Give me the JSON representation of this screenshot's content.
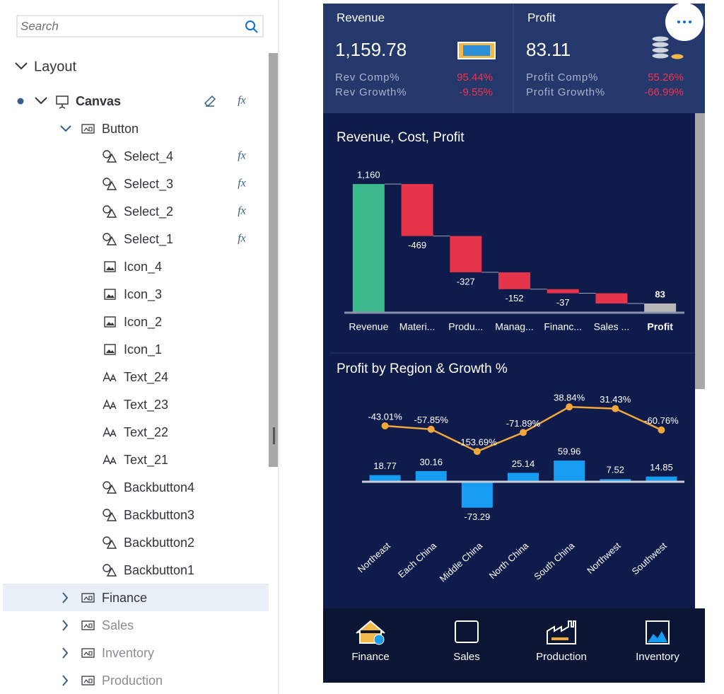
{
  "outline": {
    "search_placeholder": "Search",
    "root": "Layout",
    "canvas": "Canvas",
    "fx_label": "fx",
    "groups": [
      {
        "label": "Button",
        "expanded": true,
        "children": [
          {
            "label": "Select_4",
            "kind": "shape",
            "fx": true
          },
          {
            "label": "Select_3",
            "kind": "shape",
            "fx": true
          },
          {
            "label": "Select_2",
            "kind": "shape",
            "fx": true
          },
          {
            "label": "Select_1",
            "kind": "shape",
            "fx": true
          },
          {
            "label": "Icon_4",
            "kind": "image",
            "fx": false
          },
          {
            "label": "Icon_3",
            "kind": "image",
            "fx": false
          },
          {
            "label": "Icon_2",
            "kind": "image",
            "fx": false
          },
          {
            "label": "Icon_1",
            "kind": "image",
            "fx": false
          },
          {
            "label": "Text_24",
            "kind": "text",
            "fx": false
          },
          {
            "label": "Text_23",
            "kind": "text",
            "fx": false
          },
          {
            "label": "Text_22",
            "kind": "text",
            "fx": false
          },
          {
            "label": "Text_21",
            "kind": "text",
            "fx": false
          },
          {
            "label": "Backbutton4",
            "kind": "shape",
            "fx": false
          },
          {
            "label": "Backbutton3",
            "kind": "shape",
            "fx": false
          },
          {
            "label": "Backbutton2",
            "kind": "shape",
            "fx": false
          },
          {
            "label": "Backbutton1",
            "kind": "shape",
            "fx": false
          }
        ]
      },
      {
        "label": "Finance",
        "expanded": false,
        "selected": true,
        "dimmed": false
      },
      {
        "label": "Sales",
        "expanded": false,
        "dimmed": true
      },
      {
        "label": "Inventory",
        "expanded": false,
        "dimmed": true
      },
      {
        "label": "Production",
        "expanded": false,
        "dimmed": true
      }
    ]
  },
  "kpis": [
    {
      "title": "Revenue",
      "value": "1,159.78",
      "rows": [
        {
          "label": "Rev Comp%",
          "value": "95.44%"
        },
        {
          "label": "Rev Growth%",
          "value": "-9.55%"
        }
      ]
    },
    {
      "title": "Profit",
      "value": "83.11",
      "rows": [
        {
          "label": "Profit Comp%",
          "value": "55.26%"
        },
        {
          "label": "Profit Growth%",
          "value": "-66.99%"
        }
      ]
    }
  ],
  "chart_data": [
    {
      "type": "waterfall",
      "title": "Revenue, Cost, Profit",
      "categories": [
        "Revenue",
        "Materi...",
        "Produ...",
        "Manag...",
        "Financ...",
        "Sales ...",
        "Profit"
      ],
      "values": [
        1160,
        -469,
        -327,
        -152,
        -37,
        -92,
        83
      ],
      "value_labels": [
        "1,160",
        "-469",
        "-327",
        "-152",
        "-37",
        null,
        "83"
      ],
      "total_last": true,
      "colors": {
        "first": "#3dba8c",
        "negative": "#e5344a",
        "total": "#b8b8b8"
      },
      "ylim": [
        0,
        1250
      ]
    },
    {
      "type": "bar-line",
      "title": "Profit by Region & Growth %",
      "categories": [
        "Northeast",
        "Each China",
        "Middle China",
        "North China",
        "South China",
        "Northwest",
        "Southwest"
      ],
      "series": [
        {
          "name": "Profit",
          "type": "bar",
          "color": "#169df2",
          "values": [
            18.77,
            30.16,
            -73.29,
            25.14,
            59.96,
            7.52,
            14.85
          ]
        },
        {
          "name": "Growth %",
          "type": "line",
          "axis": "y2",
          "color": "#f2a73b",
          "values": [
            -43.01,
            -57.85,
            -153.69,
            -71.89,
            38.84,
            31.43,
            -60.76
          ],
          "value_labels": [
            "-43.01%",
            "-57.85%",
            "-153.69%",
            "-71.89%",
            "38.84%",
            "31.43%",
            "-60.76%"
          ]
        }
      ],
      "ylim": [
        -80,
        80
      ],
      "y2lim": [
        -190,
        70
      ]
    }
  ],
  "tabs": [
    "Finance",
    "Sales",
    "Production",
    "Inventory"
  ]
}
